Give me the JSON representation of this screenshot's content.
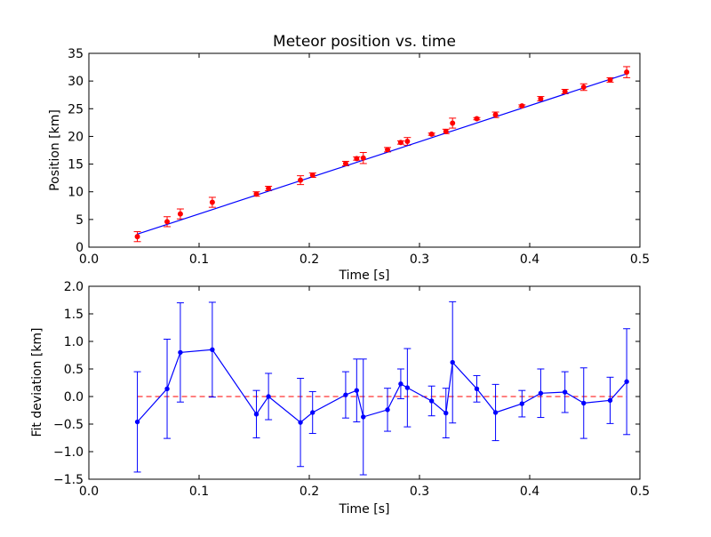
{
  "chart_data": [
    {
      "type": "scatter",
      "title": "Meteor position vs. time",
      "xlabel": "Time [s]",
      "ylabel": "Position [km]",
      "xlim": [
        0.0,
        0.5
      ],
      "ylim": [
        0,
        35
      ],
      "xticks": [
        "0.0",
        "0.1",
        "0.2",
        "0.3",
        "0.4",
        "0.5"
      ],
      "yticks": [
        "0",
        "5",
        "10",
        "15",
        "20",
        "25",
        "30",
        "35"
      ],
      "grid": false,
      "colors": {
        "points": "#ff0000",
        "fit_line": "#0000ff"
      },
      "series": [
        {
          "kind": "points-with-errorbars",
          "x": [
            0.044,
            0.071,
            0.083,
            0.112,
            0.152,
            0.163,
            0.192,
            0.203,
            0.233,
            0.243,
            0.249,
            0.271,
            0.283,
            0.289,
            0.311,
            0.324,
            0.33,
            0.352,
            0.369,
            0.393,
            0.41,
            0.432,
            0.449,
            0.473,
            0.488
          ],
          "y": [
            1.9,
            4.6,
            6.0,
            8.1,
            9.6,
            10.6,
            12.1,
            13.0,
            15.1,
            16.0,
            16.1,
            17.6,
            18.9,
            19.1,
            20.4,
            20.9,
            22.4,
            23.2,
            23.9,
            25.5,
            26.8,
            28.1,
            28.9,
            30.2,
            31.6
          ],
          "err": [
            0.9,
            0.9,
            0.9,
            0.9,
            0.4,
            0.4,
            0.8,
            0.4,
            0.4,
            0.3,
            1.0,
            0.4,
            0.3,
            0.7,
            0.2,
            0.4,
            0.9,
            0.2,
            0.5,
            0.2,
            0.4,
            0.4,
            0.6,
            0.4,
            1.0
          ]
        },
        {
          "kind": "fit-line",
          "x": [
            0.044,
            0.488
          ],
          "y": [
            2.35,
            31.3
          ]
        }
      ]
    },
    {
      "type": "line",
      "title": "",
      "xlabel": "Time [s]",
      "ylabel": "Fit deviation [km]",
      "xlim": [
        0.0,
        0.5
      ],
      "ylim": [
        -1.5,
        2.0
      ],
      "xticks": [
        "0.0",
        "0.1",
        "0.2",
        "0.3",
        "0.4",
        "0.5"
      ],
      "yticks": [
        "−1.5",
        "−1.0",
        "−0.5",
        "0.0",
        "0.5",
        "1.0",
        "1.5",
        "2.0"
      ],
      "grid": false,
      "colors": {
        "series": "#0000ff",
        "zero_line": "#ff0000"
      },
      "zero_line": 0.0,
      "series": [
        {
          "kind": "line-with-errorbars",
          "x": [
            0.044,
            0.071,
            0.083,
            0.112,
            0.152,
            0.163,
            0.192,
            0.203,
            0.233,
            0.243,
            0.249,
            0.271,
            0.283,
            0.289,
            0.311,
            0.324,
            0.33,
            0.352,
            0.369,
            0.393,
            0.41,
            0.432,
            0.449,
            0.473,
            0.488
          ],
          "y": [
            -0.46,
            0.14,
            0.8,
            0.85,
            -0.32,
            0.0,
            -0.47,
            -0.29,
            0.03,
            0.11,
            -0.37,
            -0.24,
            0.23,
            0.16,
            -0.08,
            -0.3,
            0.62,
            0.14,
            -0.29,
            -0.13,
            0.06,
            0.08,
            -0.12,
            -0.07,
            0.27
          ],
          "err": [
            0.91,
            0.9,
            0.9,
            0.86,
            0.43,
            0.42,
            0.8,
            0.38,
            0.42,
            0.57,
            1.05,
            0.39,
            0.27,
            0.71,
            0.27,
            0.45,
            1.1,
            0.24,
            0.51,
            0.24,
            0.44,
            0.37,
            0.64,
            0.42,
            0.96
          ]
        }
      ]
    }
  ]
}
